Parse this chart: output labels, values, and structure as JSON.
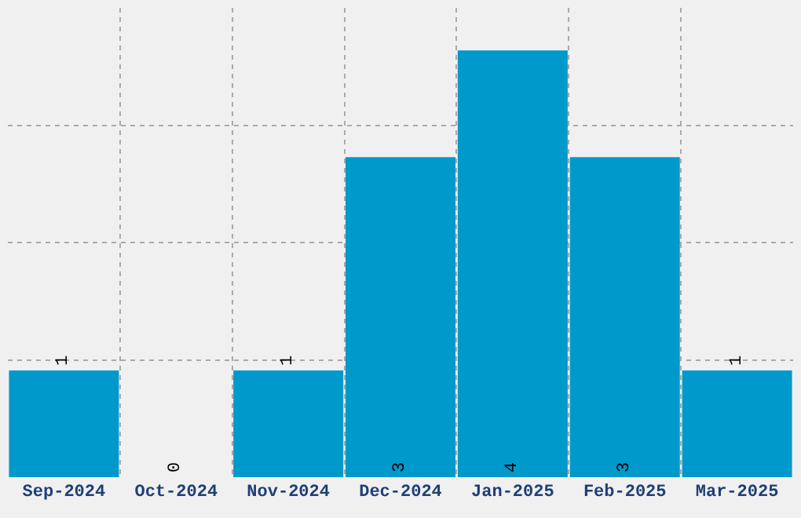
{
  "chart_data": {
    "type": "bar",
    "categories": [
      "Sep-2024",
      "Oct-2024",
      "Nov-2024",
      "Dec-2024",
      "Jan-2025",
      "Feb-2025",
      "Mar-2025"
    ],
    "values": [
      1,
      0,
      1,
      3,
      4,
      3,
      1
    ],
    "color": "#0099cc",
    "data_labels": true,
    "ylim": [
      0,
      4.4
    ],
    "yticks": [
      {
        "value": 1.1,
        "label": null
      },
      {
        "value": 2.2,
        "label": null
      },
      {
        "value": 3.3,
        "label": null
      }
    ],
    "tick_labels": "x",
    "grid": true,
    "legend": false
  }
}
